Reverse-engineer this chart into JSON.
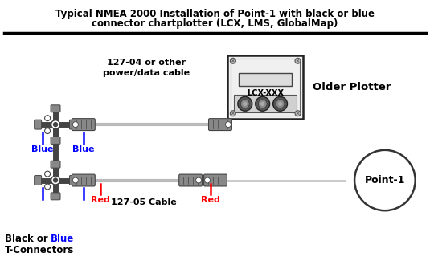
{
  "title_line1": "Typical NMEA 2000 Installation of Point-1 with black or blue",
  "title_line2": "connector chartplotter (LCX, LMS, GlobalMap)",
  "bg_color": "#ffffff",
  "title_color": "#000000",
  "label_127_04": "127-04 or other\npower/data cable",
  "label_127_05": "127-05 Cable",
  "label_older_plotter": "Older Plotter",
  "label_lcx": "LCX-XXX",
  "label_point1": "Point-1",
  "label_blue1": "Blue",
  "label_blue2": "Blue",
  "label_red1": "Red",
  "label_red2": "Red",
  "label_bottom_black": "Black or ",
  "label_bottom_blue": "Blue",
  "label_bottom2": "T-Connectors",
  "blue_color": "#0000ff",
  "red_color": "#ff0000",
  "black_color": "#000000",
  "connector_gray": "#888888",
  "wire_gray": "#bbbbbb",
  "dark_gray": "#444444",
  "box_fill": "#e0e0e0",
  "box_edge": "#222222"
}
